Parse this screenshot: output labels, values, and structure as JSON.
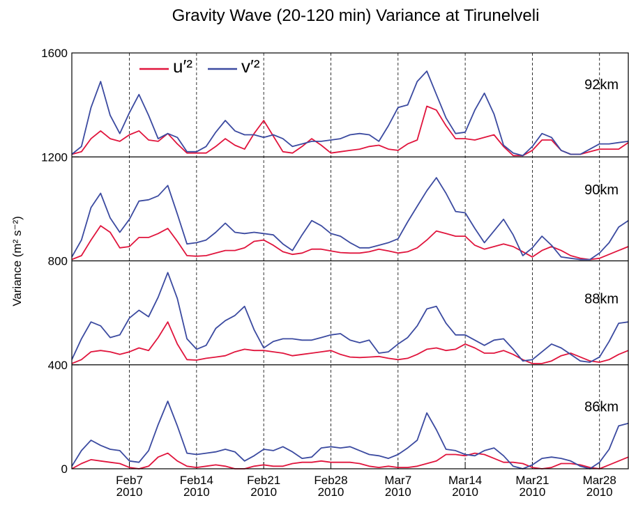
{
  "chart_data": {
    "type": "line",
    "title": "Gravity Wave (20-120 min) Variance at Tirunelveli",
    "y_label": "Variance (m² s⁻²)",
    "panel_labels": [
      {
        "label": "92km",
        "y": 1480
      },
      {
        "label": "90km",
        "y": 1075
      },
      {
        "label": "88km",
        "y": 655
      },
      {
        "label": "86km",
        "y": 240
      }
    ],
    "x": [
      "2010-02-01",
      "2010-02-02",
      "2010-02-03",
      "2010-02-04",
      "2010-02-05",
      "2010-02-06",
      "2010-02-07",
      "2010-02-08",
      "2010-02-09",
      "2010-02-10",
      "2010-02-11",
      "2010-02-12",
      "2010-02-13",
      "2010-02-14",
      "2010-02-15",
      "2010-02-16",
      "2010-02-17",
      "2010-02-18",
      "2010-02-19",
      "2010-02-20",
      "2010-02-21",
      "2010-02-22",
      "2010-02-23",
      "2010-02-24",
      "2010-02-25",
      "2010-02-26",
      "2010-02-27",
      "2010-02-28",
      "2010-03-01",
      "2010-03-02",
      "2010-03-03",
      "2010-03-04",
      "2010-03-05",
      "2010-03-06",
      "2010-03-07",
      "2010-03-08",
      "2010-03-09",
      "2010-03-10",
      "2010-03-11",
      "2010-03-12",
      "2010-03-13",
      "2010-03-14",
      "2010-03-15",
      "2010-03-16",
      "2010-03-17",
      "2010-03-18",
      "2010-03-19",
      "2010-03-20",
      "2010-03-21",
      "2010-03-22",
      "2010-03-23",
      "2010-03-24",
      "2010-03-25",
      "2010-03-26",
      "2010-03-27",
      "2010-03-28",
      "2010-03-29",
      "2010-03-30",
      "2010-03-31"
    ],
    "xlim": [
      "2010-02-01",
      "2010-03-31"
    ],
    "xticks": [
      {
        "value": "2010-02-07",
        "label": [
          "Feb7",
          "2010"
        ]
      },
      {
        "value": "2010-02-14",
        "label": [
          "Feb14",
          "2010"
        ]
      },
      {
        "value": "2010-02-21",
        "label": [
          "Feb21",
          "2010"
        ]
      },
      {
        "value": "2010-02-28",
        "label": [
          "Feb28",
          "2010"
        ]
      },
      {
        "value": "2010-03-07",
        "label": [
          "Mar7",
          "2010"
        ]
      },
      {
        "value": "2010-03-14",
        "label": [
          "Mar14",
          "2010"
        ]
      },
      {
        "value": "2010-03-21",
        "label": [
          "Mar21",
          "2010"
        ]
      },
      {
        "value": "2010-03-28",
        "label": [
          "Mar28",
          "2010"
        ]
      }
    ],
    "ylim": [
      0,
      1600
    ],
    "yticks": [
      0,
      400,
      800,
      1200,
      1600
    ],
    "legend": "top-left",
    "series": [
      {
        "name": "u′²",
        "color": "#e0143c",
        "values": [
          1210,
          1220,
          1270,
          1300,
          1270,
          1260,
          1285,
          1300,
          1265,
          1260,
          1290,
          1250,
          1215,
          1215,
          1215,
          1240,
          1270,
          1245,
          1230,
          1290,
          1340,
          1280,
          1220,
          1215,
          1240,
          1270,
          1245,
          1215,
          1220,
          1225,
          1230,
          1240,
          1245,
          1230,
          1225,
          1250,
          1265,
          1395,
          1380,
          1320,
          1270,
          1270,
          1265,
          1275,
          1285,
          1240,
          1205,
          1205,
          1225,
          1265,
          1265,
          1225,
          1210,
          1210,
          1220,
          1230,
          1230,
          1230,
          1255
        ]
      },
      {
        "name": "v′²",
        "color": "#3b4aa0",
        "values": [
          1210,
          1240,
          1390,
          1490,
          1360,
          1290,
          1370,
          1440,
          1360,
          1270,
          1290,
          1275,
          1220,
          1220,
          1240,
          1295,
          1340,
          1300,
          1285,
          1285,
          1275,
          1285,
          1270,
          1240,
          1250,
          1260,
          1260,
          1265,
          1270,
          1285,
          1290,
          1285,
          1260,
          1320,
          1390,
          1400,
          1490,
          1530,
          1440,
          1350,
          1290,
          1295,
          1380,
          1445,
          1365,
          1245,
          1215,
          1205,
          1240,
          1290,
          1275,
          1225,
          1210,
          1210,
          1230,
          1250,
          1250,
          1255,
          1260
        ]
      },
      {
        "color": "#e0143c",
        "values": [
          805,
          820,
          880,
          935,
          910,
          850,
          855,
          890,
          890,
          905,
          925,
          875,
          820,
          818,
          820,
          830,
          840,
          840,
          850,
          875,
          880,
          860,
          835,
          825,
          830,
          845,
          845,
          838,
          832,
          830,
          830,
          835,
          845,
          838,
          830,
          835,
          850,
          880,
          915,
          905,
          895,
          895,
          860,
          845,
          855,
          865,
          855,
          835,
          815,
          840,
          855,
          840,
          820,
          810,
          805,
          810,
          825,
          840,
          855
        ]
      },
      {
        "color": "#3b4aa0",
        "values": [
          815,
          880,
          1005,
          1060,
          965,
          910,
          960,
          1030,
          1035,
          1050,
          1090,
          980,
          865,
          870,
          880,
          910,
          945,
          910,
          905,
          910,
          905,
          900,
          865,
          840,
          900,
          955,
          935,
          905,
          895,
          870,
          850,
          850,
          860,
          870,
          885,
          950,
          1010,
          1070,
          1120,
          1060,
          990,
          985,
          925,
          870,
          915,
          960,
          900,
          820,
          850,
          895,
          860,
          815,
          810,
          805,
          805,
          830,
          870,
          930,
          955
        ]
      },
      {
        "color": "#e0143c",
        "values": [
          405,
          420,
          450,
          455,
          450,
          440,
          450,
          465,
          455,
          505,
          565,
          480,
          420,
          418,
          425,
          430,
          435,
          450,
          460,
          455,
          455,
          450,
          445,
          435,
          440,
          445,
          450,
          455,
          440,
          430,
          428,
          430,
          432,
          425,
          420,
          425,
          440,
          460,
          465,
          455,
          460,
          480,
          465,
          445,
          445,
          455,
          440,
          420,
          405,
          405,
          415,
          435,
          445,
          430,
          415,
          410,
          420,
          440,
          455
        ]
      },
      {
        "color": "#3b4aa0",
        "values": [
          420,
          500,
          565,
          550,
          505,
          515,
          580,
          610,
          585,
          660,
          755,
          655,
          500,
          460,
          475,
          540,
          570,
          590,
          625,
          535,
          465,
          490,
          500,
          500,
          495,
          495,
          505,
          515,
          520,
          495,
          485,
          495,
          445,
          450,
          480,
          505,
          550,
          615,
          625,
          560,
          515,
          515,
          495,
          475,
          495,
          500,
          460,
          415,
          420,
          450,
          480,
          465,
          440,
          415,
          410,
          430,
          490,
          560,
          565
        ]
      },
      {
        "color": "#e0143c",
        "values": [
          0,
          20,
          35,
          30,
          25,
          20,
          5,
          0,
          10,
          45,
          60,
          30,
          10,
          5,
          10,
          15,
          10,
          0,
          0,
          10,
          15,
          10,
          10,
          20,
          25,
          25,
          30,
          25,
          25,
          25,
          20,
          10,
          5,
          10,
          5,
          5,
          10,
          20,
          30,
          55,
          55,
          50,
          60,
          55,
          40,
          25,
          25,
          20,
          5,
          0,
          5,
          20,
          20,
          15,
          5,
          0,
          15,
          30,
          45
        ]
      },
      {
        "color": "#3b4aa0",
        "values": [
          10,
          70,
          110,
          90,
          75,
          70,
          30,
          25,
          70,
          170,
          260,
          165,
          60,
          55,
          60,
          65,
          75,
          65,
          30,
          50,
          75,
          70,
          85,
          65,
          40,
          45,
          80,
          85,
          80,
          85,
          70,
          55,
          50,
          40,
          55,
          80,
          110,
          215,
          150,
          75,
          70,
          55,
          50,
          70,
          80,
          50,
          10,
          0,
          15,
          40,
          45,
          40,
          30,
          10,
          0,
          25,
          75,
          165,
          175
        ]
      }
    ]
  }
}
